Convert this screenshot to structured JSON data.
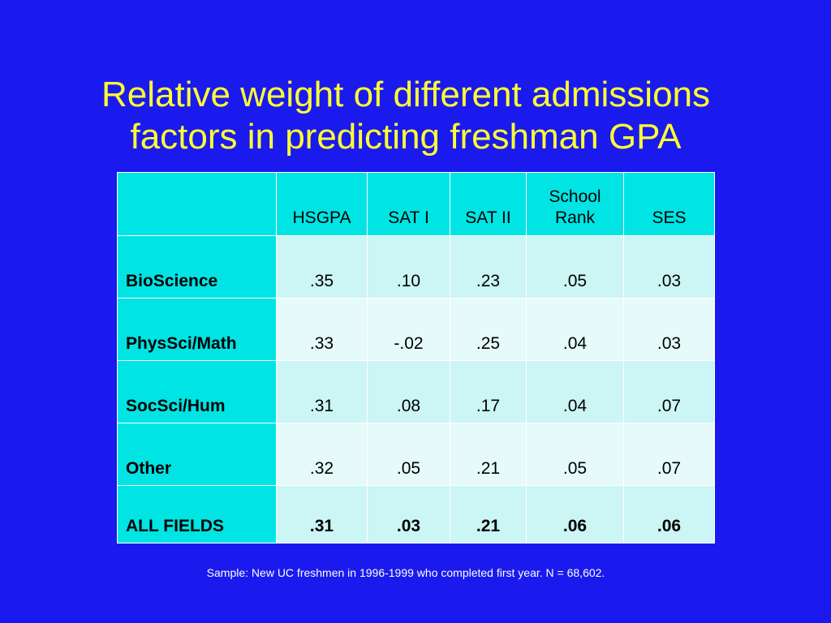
{
  "title": {
    "line1": "Relative weight of different admissions",
    "line2": "factors in predicting freshman GPA"
  },
  "table": {
    "headers": [
      "",
      "HSGPA",
      "SAT I",
      "SAT II",
      "School Rank",
      "SES"
    ],
    "header_school_rank_line1": "School",
    "header_school_rank_line2": "Rank",
    "rows": [
      {
        "label": "BioScience",
        "values": [
          ".35",
          ".10",
          ".23",
          ".05",
          ".03"
        ]
      },
      {
        "label": "PhysSci/Math",
        "values": [
          ".33",
          "-.02",
          ".25",
          ".04",
          ".03"
        ]
      },
      {
        "label": "SocSci/Hum",
        "values": [
          ".31",
          ".08",
          ".17",
          ".04",
          ".07"
        ]
      },
      {
        "label": "Other",
        "values": [
          ".32",
          ".05",
          ".21",
          ".05",
          ".07"
        ]
      },
      {
        "label": "ALL FIELDS",
        "values": [
          ".31",
          ".03",
          ".21",
          ".06",
          ".06"
        ]
      }
    ]
  },
  "footnote": "Sample:  New UC freshmen in 1996-1999 who completed first year.  N = 68,602.",
  "colors": {
    "background": "#1a1aee",
    "title": "#ffff33",
    "header_cell": "#00e4e4",
    "row_odd": "#ccf5f5",
    "row_even": "#e6fafa"
  }
}
